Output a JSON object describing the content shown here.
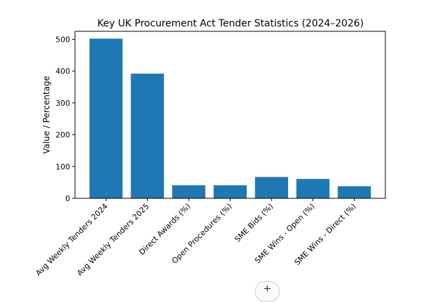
{
  "chart_data": {
    "type": "bar",
    "title": "Key UK Procurement Act Tender Statistics (2024–2026)",
    "xlabel": "",
    "ylabel": "Value / Percentage",
    "categories": [
      "Avg Weekly Tenders 2024",
      "Avg Weekly Tenders 2025",
      "Direct Awards (%)",
      "Open Procedures (%)",
      "SME Bids (%)",
      "SME Wins - Open (%)",
      "SME Wins - Direct (%)"
    ],
    "values": [
      502,
      392,
      41,
      41,
      67,
      61,
      38
    ],
    "ylim": [
      0,
      525
    ],
    "yticks": [
      0,
      100,
      200,
      300,
      400,
      500
    ],
    "bar_color": "#1f77b4",
    "grid": false,
    "legend": "none"
  },
  "controls": {
    "zoom_icon": "plus-icon",
    "zoom_symbol": "+"
  }
}
